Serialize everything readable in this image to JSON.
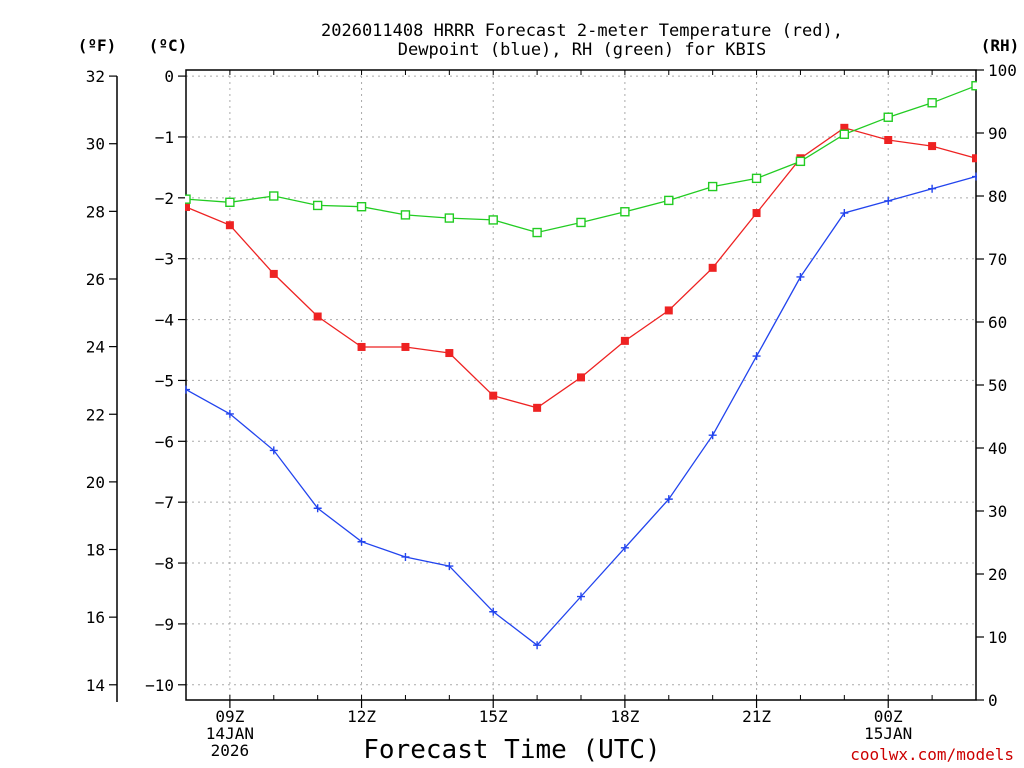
{
  "chart_data": {
    "type": "line",
    "title_lines": [
      "2026011408 HRRR Forecast 2-meter Temperature (red),",
      "Dewpoint (blue), RH (green) for KBIS"
    ],
    "xlabel": "Forecast Time (UTC)",
    "credit": "coolwx.com/models",
    "units": {
      "fahrenheit": "(ºF)",
      "celsius": "(ºC)",
      "rh": "(RH)"
    },
    "x_hours": [
      8,
      9,
      10,
      11,
      12,
      13,
      14,
      15,
      16,
      17,
      18,
      19,
      20,
      21,
      22,
      23,
      24,
      25,
      26
    ],
    "xlim": [
      8,
      26
    ],
    "x_ticks": [
      {
        "hour": 9,
        "lines": [
          "09Z",
          "14JAN",
          "2026"
        ]
      },
      {
        "hour": 12,
        "lines": [
          "12Z"
        ]
      },
      {
        "hour": 15,
        "lines": [
          "15Z"
        ]
      },
      {
        "hour": 18,
        "lines": [
          "18Z"
        ]
      },
      {
        "hour": 21,
        "lines": [
          "21Z"
        ]
      },
      {
        "hour": 24,
        "lines": [
          "00Z",
          "15JAN"
        ]
      }
    ],
    "ylim_c": [
      -10.25,
      0.1
    ],
    "celsius_ticks": [
      "0",
      "−1",
      "−2",
      "−3",
      "−4",
      "−5",
      "−6",
      "−7",
      "−8",
      "−9",
      "−10"
    ],
    "celsius_tick_values": [
      0,
      -1,
      -2,
      -3,
      -4,
      -5,
      -6,
      -7,
      -8,
      -9,
      -10
    ],
    "fahrenheit_ticks": [
      "32",
      "30",
      "28",
      "26",
      "24",
      "22",
      "20",
      "18",
      "16",
      "14"
    ],
    "fahrenheit_tick_values": [
      32,
      30,
      28,
      26,
      24,
      22,
      20,
      18,
      16,
      14
    ],
    "ylim_rh": [
      0,
      100
    ],
    "rh_ticks": [
      "0",
      "10",
      "20",
      "30",
      "40",
      "50",
      "60",
      "70",
      "80",
      "90",
      "100"
    ],
    "rh_tick_values": [
      0,
      10,
      20,
      30,
      40,
      50,
      60,
      70,
      80,
      90,
      100
    ],
    "series": [
      {
        "name": "Temperature",
        "unit": "C",
        "color": "#ee2222",
        "marker": "filled-square",
        "values": [
          -2.15,
          -2.45,
          -3.25,
          -3.95,
          -4.45,
          -4.45,
          -4.55,
          -5.25,
          -5.45,
          -4.95,
          -4.35,
          -3.85,
          -3.15,
          -2.25,
          -1.35,
          -0.85,
          -1.05,
          -1.15,
          -1.35
        ]
      },
      {
        "name": "Dewpoint",
        "unit": "C",
        "color": "#2244ee",
        "marker": "plus",
        "values": [
          -5.15,
          -5.55,
          -6.15,
          -7.1,
          -7.65,
          -7.9,
          -8.05,
          -8.8,
          -9.35,
          -8.55,
          -7.75,
          -6.95,
          -5.9,
          -4.6,
          -3.3,
          -2.25,
          -2.05,
          -1.85,
          -1.65
        ]
      },
      {
        "name": "RH",
        "unit": "%",
        "color": "#22cc22",
        "marker": "open-square",
        "values": [
          79.5,
          79,
          80,
          78.5,
          78.3,
          77,
          76.5,
          76.2,
          74.2,
          75.8,
          77.5,
          79.3,
          81.5,
          82.8,
          85.5,
          89.8,
          92.5,
          94.8,
          97.5
        ]
      }
    ]
  }
}
